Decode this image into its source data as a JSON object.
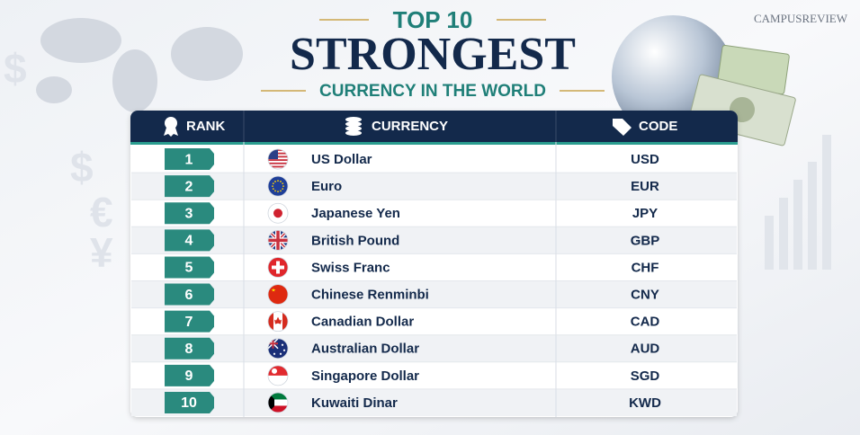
{
  "header": {
    "top": "TOP 10",
    "title": "STRONGEST",
    "subtitle": "CURRENCY IN THE WORLD",
    "brand": "CAMPUSREVIEW"
  },
  "table": {
    "columns": [
      "RANK",
      "CURRENCY",
      "CODE"
    ],
    "rows": [
      [
        1,
        "US Dollar",
        "USD"
      ],
      [
        2,
        "Euro",
        "EUR"
      ],
      [
        3,
        "Japanese Yen",
        "JPY"
      ],
      [
        4,
        "British Pound",
        "GBP"
      ],
      [
        5,
        "Swiss Franc",
        "CHF"
      ],
      [
        6,
        "Chinese Renminbi",
        "CNY"
      ],
      [
        7,
        "Canadian Dollar",
        "CAD"
      ],
      [
        8,
        "Australian Dollar",
        "AUD"
      ],
      [
        9,
        "Singapore Dollar",
        "SGD"
      ],
      [
        10,
        "Kuwaiti Dinar",
        "KWD"
      ]
    ]
  }
}
